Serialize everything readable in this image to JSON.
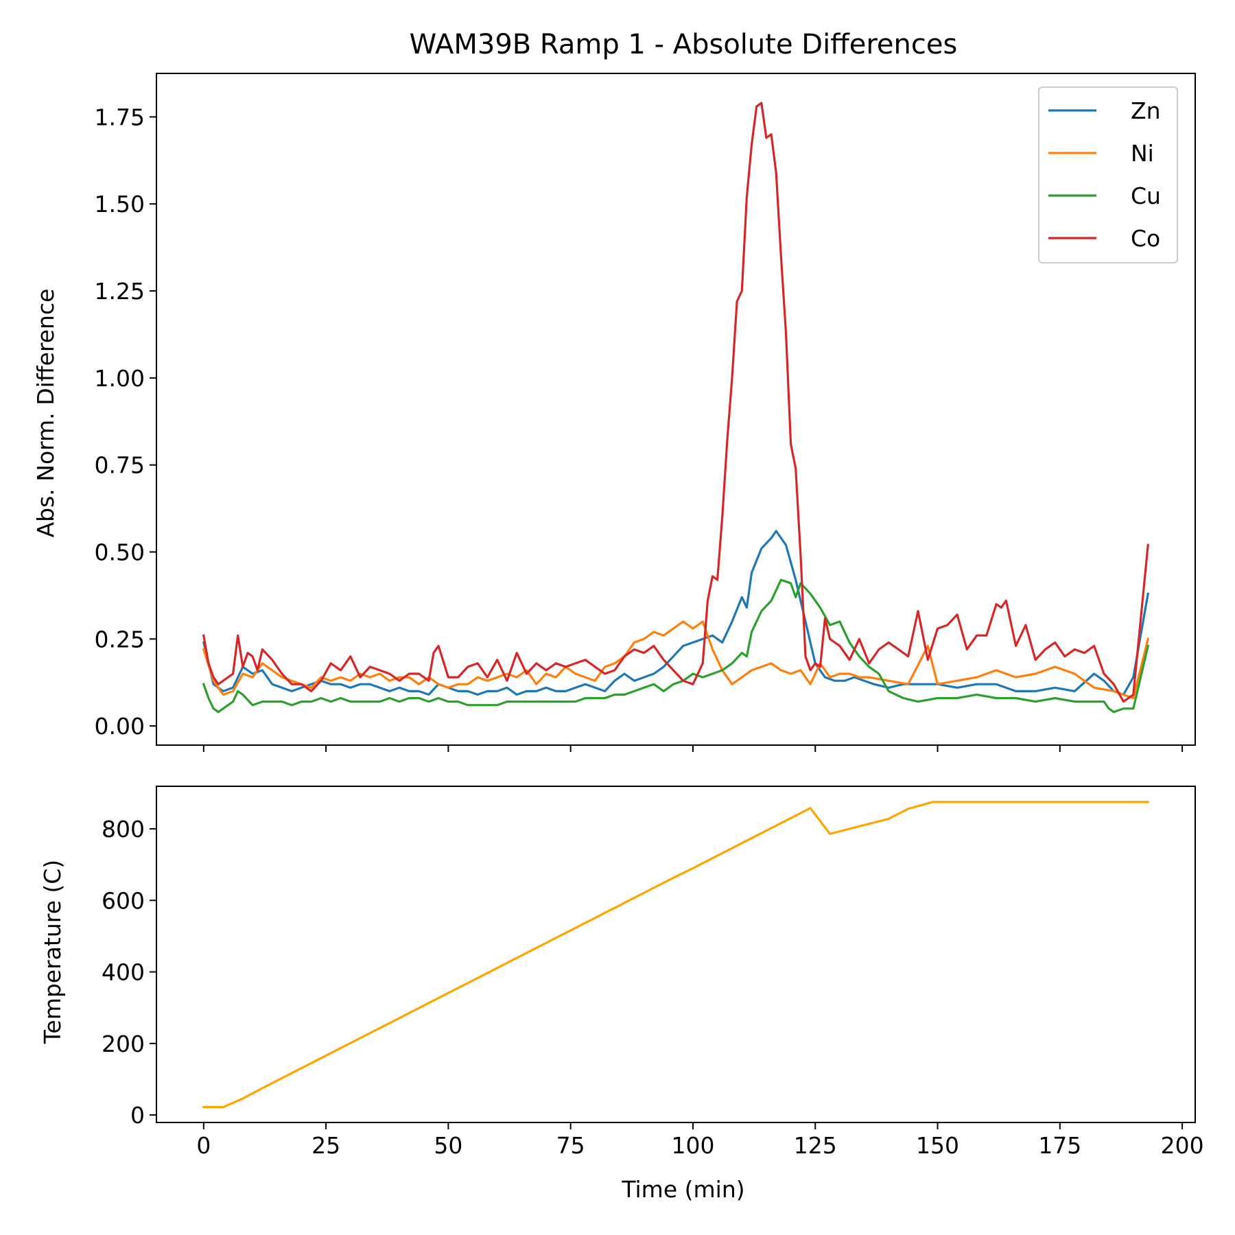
{
  "chart_data": [
    {
      "type": "line",
      "title": "WAM39B Ramp 1 - Absolute Differences",
      "xlabel": "",
      "ylabel": "Abs. Norm. Difference",
      "xlim": [
        -9.65,
        202.65
      ],
      "ylim": [
        -0.055,
        1.875
      ],
      "xticks": [
        0,
        25,
        50,
        75,
        100,
        125,
        150,
        175,
        200
      ],
      "yticks": [
        0.0,
        0.25,
        0.5,
        0.75,
        1.0,
        1.25,
        1.5,
        1.75
      ],
      "ytick_labels": [
        "0.00",
        "0.25",
        "0.50",
        "0.75",
        "1.00",
        "1.25",
        "1.50",
        "1.75"
      ],
      "show_xtick_labels": false,
      "grid": false,
      "legend": "top-right",
      "series": [
        {
          "name": "Zn",
          "color": "#1f77b4",
          "x": [
            0,
            2,
            4,
            6,
            8,
            10,
            12,
            14,
            16,
            18,
            20,
            22,
            24,
            26,
            28,
            30,
            32,
            34,
            36,
            38,
            40,
            42,
            44,
            46,
            48,
            50,
            52,
            54,
            56,
            58,
            60,
            62,
            64,
            66,
            68,
            70,
            72,
            74,
            76,
            78,
            80,
            82,
            84,
            86,
            88,
            90,
            92,
            94,
            96,
            98,
            100,
            102,
            104,
            106,
            108,
            110,
            111,
            112,
            114,
            116,
            117,
            119,
            121,
            123,
            125,
            127,
            129,
            131,
            133,
            135,
            137,
            140,
            143,
            146,
            150,
            154,
            158,
            162,
            166,
            170,
            174,
            178,
            182,
            184,
            186,
            188,
            190,
            193
          ],
          "y": [
            0.24,
            0.12,
            0.1,
            0.11,
            0.17,
            0.15,
            0.16,
            0.12,
            0.11,
            0.1,
            0.11,
            0.12,
            0.13,
            0.12,
            0.12,
            0.11,
            0.12,
            0.12,
            0.11,
            0.1,
            0.11,
            0.1,
            0.1,
            0.09,
            0.12,
            0.11,
            0.1,
            0.1,
            0.09,
            0.1,
            0.1,
            0.11,
            0.09,
            0.1,
            0.1,
            0.11,
            0.1,
            0.1,
            0.11,
            0.12,
            0.11,
            0.1,
            0.13,
            0.15,
            0.13,
            0.14,
            0.15,
            0.17,
            0.2,
            0.23,
            0.24,
            0.25,
            0.26,
            0.24,
            0.3,
            0.37,
            0.34,
            0.44,
            0.51,
            0.54,
            0.56,
            0.52,
            0.42,
            0.3,
            0.18,
            0.14,
            0.13,
            0.13,
            0.14,
            0.13,
            0.12,
            0.11,
            0.12,
            0.12,
            0.12,
            0.11,
            0.12,
            0.12,
            0.1,
            0.1,
            0.11,
            0.1,
            0.15,
            0.13,
            0.1,
            0.09,
            0.14,
            0.38
          ]
        },
        {
          "name": "Ni",
          "color": "#ff7f0e",
          "x": [
            0,
            2,
            4,
            6,
            8,
            10,
            12,
            14,
            16,
            18,
            20,
            22,
            24,
            26,
            28,
            30,
            32,
            34,
            36,
            38,
            40,
            42,
            44,
            46,
            48,
            50,
            52,
            54,
            56,
            58,
            60,
            62,
            64,
            66,
            68,
            70,
            72,
            74,
            76,
            78,
            80,
            82,
            84,
            86,
            88,
            90,
            92,
            94,
            96,
            98,
            100,
            102,
            104,
            106,
            108,
            110,
            112,
            114,
            116,
            118,
            120,
            122,
            124,
            126,
            128,
            130,
            132,
            134,
            136,
            140,
            144,
            148,
            150,
            154,
            158,
            162,
            166,
            170,
            174,
            178,
            182,
            186,
            190,
            193
          ],
          "y": [
            0.22,
            0.13,
            0.09,
            0.1,
            0.15,
            0.14,
            0.18,
            0.16,
            0.14,
            0.13,
            0.12,
            0.11,
            0.14,
            0.13,
            0.14,
            0.13,
            0.15,
            0.14,
            0.15,
            0.13,
            0.14,
            0.14,
            0.12,
            0.14,
            0.12,
            0.11,
            0.12,
            0.12,
            0.14,
            0.13,
            0.14,
            0.15,
            0.14,
            0.16,
            0.12,
            0.15,
            0.14,
            0.17,
            0.15,
            0.14,
            0.13,
            0.17,
            0.18,
            0.2,
            0.24,
            0.25,
            0.27,
            0.26,
            0.28,
            0.3,
            0.28,
            0.3,
            0.22,
            0.16,
            0.12,
            0.14,
            0.16,
            0.17,
            0.18,
            0.16,
            0.15,
            0.16,
            0.12,
            0.18,
            0.14,
            0.15,
            0.15,
            0.14,
            0.14,
            0.13,
            0.12,
            0.23,
            0.12,
            0.13,
            0.14,
            0.16,
            0.14,
            0.15,
            0.17,
            0.15,
            0.11,
            0.1,
            0.08,
            0.25
          ]
        },
        {
          "name": "Cu",
          "color": "#2ca02c",
          "x": [
            0,
            1,
            2,
            3,
            4,
            6,
            7,
            8,
            10,
            12,
            14,
            16,
            18,
            20,
            22,
            24,
            26,
            28,
            30,
            32,
            34,
            36,
            38,
            40,
            42,
            44,
            46,
            48,
            50,
            52,
            54,
            56,
            58,
            60,
            62,
            64,
            66,
            68,
            70,
            72,
            74,
            76,
            78,
            80,
            82,
            84,
            86,
            88,
            90,
            92,
            94,
            96,
            98,
            100,
            102,
            104,
            106,
            108,
            110,
            111,
            112,
            114,
            116,
            118,
            120,
            121,
            122,
            124,
            126,
            128,
            130,
            132,
            134,
            136,
            138,
            140,
            143,
            146,
            150,
            154,
            158,
            162,
            166,
            170,
            174,
            178,
            182,
            184,
            185,
            186,
            188,
            190,
            193
          ],
          "y": [
            0.12,
            0.08,
            0.05,
            0.04,
            0.05,
            0.07,
            0.1,
            0.09,
            0.06,
            0.07,
            0.07,
            0.07,
            0.06,
            0.07,
            0.07,
            0.08,
            0.07,
            0.08,
            0.07,
            0.07,
            0.07,
            0.07,
            0.08,
            0.07,
            0.08,
            0.08,
            0.07,
            0.08,
            0.07,
            0.07,
            0.06,
            0.06,
            0.06,
            0.06,
            0.07,
            0.07,
            0.07,
            0.07,
            0.07,
            0.07,
            0.07,
            0.07,
            0.08,
            0.08,
            0.08,
            0.09,
            0.09,
            0.1,
            0.11,
            0.12,
            0.1,
            0.12,
            0.13,
            0.15,
            0.14,
            0.15,
            0.16,
            0.18,
            0.21,
            0.2,
            0.27,
            0.33,
            0.36,
            0.42,
            0.41,
            0.37,
            0.41,
            0.38,
            0.34,
            0.29,
            0.3,
            0.24,
            0.2,
            0.17,
            0.15,
            0.1,
            0.08,
            0.07,
            0.08,
            0.08,
            0.09,
            0.08,
            0.08,
            0.07,
            0.08,
            0.07,
            0.07,
            0.07,
            0.05,
            0.04,
            0.05,
            0.05,
            0.23
          ]
        },
        {
          "name": "Co",
          "color": "#d62728",
          "x": [
            0,
            1,
            2,
            3,
            4,
            6,
            7,
            8,
            9,
            10,
            11,
            12,
            14,
            16,
            18,
            20,
            22,
            24,
            26,
            28,
            30,
            32,
            34,
            36,
            38,
            40,
            42,
            44,
            46,
            47,
            48,
            50,
            52,
            54,
            56,
            58,
            60,
            62,
            64,
            66,
            68,
            70,
            72,
            74,
            76,
            78,
            80,
            82,
            84,
            86,
            88,
            90,
            92,
            94,
            96,
            98,
            100,
            102,
            103,
            104,
            105,
            106,
            107,
            108,
            109,
            110,
            111,
            112,
            113,
            114,
            115,
            116,
            117,
            118,
            119,
            120,
            121,
            122,
            123,
            124,
            125,
            126,
            127,
            128,
            130,
            132,
            134,
            136,
            138,
            140,
            142,
            144,
            146,
            148,
            150,
            152,
            154,
            156,
            158,
            160,
            162,
            163,
            164,
            166,
            168,
            170,
            172,
            174,
            176,
            178,
            180,
            182,
            184,
            186,
            188,
            190,
            193
          ],
          "y": [
            0.26,
            0.18,
            0.14,
            0.12,
            0.13,
            0.15,
            0.26,
            0.17,
            0.21,
            0.2,
            0.16,
            0.22,
            0.19,
            0.15,
            0.12,
            0.12,
            0.1,
            0.13,
            0.18,
            0.16,
            0.2,
            0.14,
            0.17,
            0.16,
            0.15,
            0.13,
            0.15,
            0.15,
            0.13,
            0.21,
            0.23,
            0.14,
            0.14,
            0.17,
            0.18,
            0.14,
            0.19,
            0.13,
            0.21,
            0.15,
            0.18,
            0.16,
            0.18,
            0.17,
            0.18,
            0.19,
            0.17,
            0.15,
            0.16,
            0.2,
            0.22,
            0.21,
            0.23,
            0.19,
            0.16,
            0.13,
            0.12,
            0.18,
            0.36,
            0.43,
            0.42,
            0.6,
            0.82,
            1.0,
            1.22,
            1.25,
            1.52,
            1.67,
            1.78,
            1.79,
            1.69,
            1.7,
            1.59,
            1.35,
            1.13,
            0.81,
            0.74,
            0.49,
            0.2,
            0.16,
            0.18,
            0.17,
            0.31,
            0.25,
            0.23,
            0.19,
            0.25,
            0.18,
            0.22,
            0.24,
            0.22,
            0.2,
            0.33,
            0.19,
            0.28,
            0.29,
            0.32,
            0.22,
            0.26,
            0.26,
            0.35,
            0.34,
            0.36,
            0.23,
            0.29,
            0.19,
            0.22,
            0.24,
            0.2,
            0.22,
            0.21,
            0.23,
            0.15,
            0.12,
            0.07,
            0.09,
            0.52
          ]
        }
      ]
    },
    {
      "type": "line",
      "title": "",
      "xlabel": "Time (min)",
      "ylabel": "Temperature (C)",
      "xlim": [
        -9.65,
        202.65
      ],
      "ylim": [
        -21,
        919
      ],
      "xticks": [
        0,
        25,
        50,
        75,
        100,
        125,
        150,
        175,
        200
      ],
      "yticks": [
        0,
        200,
        400,
        600,
        800
      ],
      "ytick_labels": [
        "0",
        "200",
        "400",
        "600",
        "800"
      ],
      "show_xtick_labels": true,
      "grid": false,
      "legend": "none",
      "series": [
        {
          "color": "#ffa500",
          "x": [
            0,
            4,
            8,
            12,
            16,
            20,
            24,
            28,
            32,
            36,
            40,
            44,
            48,
            52,
            56,
            60,
            64,
            68,
            72,
            76,
            80,
            84,
            88,
            92,
            96,
            100,
            104,
            108,
            112,
            116,
            120,
            124,
            128,
            132,
            136,
            140,
            144,
            149,
            193
          ],
          "y": [
            22,
            22,
            46,
            75,
            103,
            131,
            159,
            187,
            215,
            243,
            271,
            299,
            327,
            355,
            383,
            411,
            439,
            467,
            495,
            523,
            551,
            579,
            607,
            635,
            663,
            690,
            718,
            746,
            774,
            802,
            830,
            858,
            786,
            800,
            814,
            828,
            856,
            875,
            875
          ]
        }
      ]
    }
  ]
}
